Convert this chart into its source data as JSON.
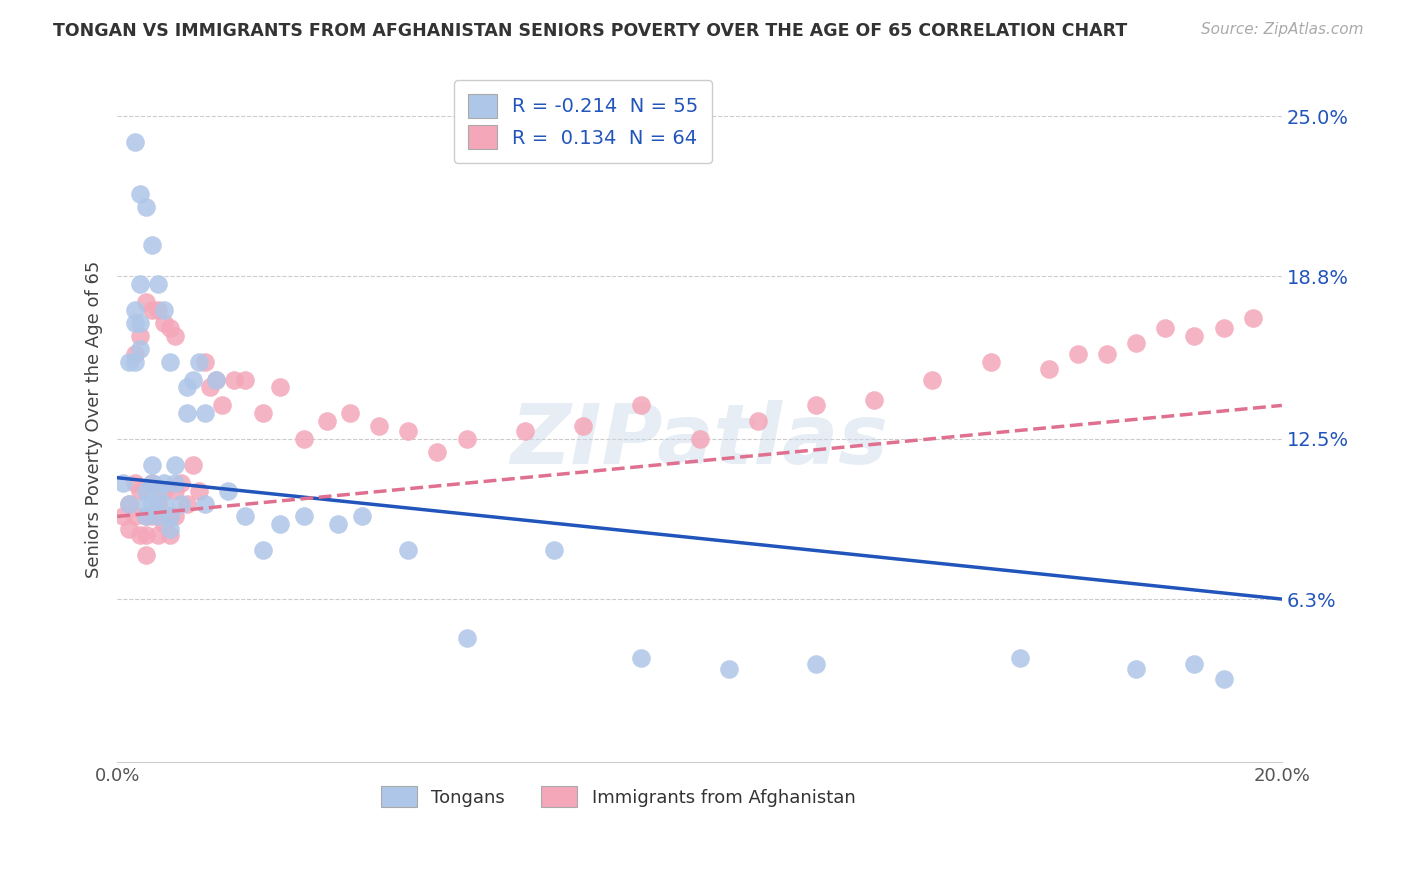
{
  "title": "TONGAN VS IMMIGRANTS FROM AFGHANISTAN SENIORS POVERTY OVER THE AGE OF 65 CORRELATION CHART",
  "source": "Source: ZipAtlas.com",
  "ylabel": "Seniors Poverty Over the Age of 65",
  "xlim": [
    0.0,
    0.2
  ],
  "ylim": [
    0.0,
    0.265
  ],
  "yticks_right": [
    0.063,
    0.125,
    0.188,
    0.25
  ],
  "yticklabels_right": [
    "6.3%",
    "12.5%",
    "18.8%",
    "25.0%"
  ],
  "grid_color": "#cccccc",
  "background_color": "#ffffff",
  "tongan_color": "#aec6e8",
  "afghanistan_color": "#f4a7b9",
  "tongan_line_color": "#2255bb",
  "afghanistan_line_color": "#e07090",
  "legend_R1": "-0.214",
  "legend_N1": "55",
  "legend_R2": "0.134",
  "legend_N2": "64",
  "tongan_x": [
    0.001,
    0.002,
    0.002,
    0.003,
    0.003,
    0.003,
    0.004,
    0.004,
    0.004,
    0.005,
    0.005,
    0.005,
    0.006,
    0.006,
    0.006,
    0.007,
    0.007,
    0.008,
    0.008,
    0.009,
    0.009,
    0.01,
    0.011,
    0.012,
    0.013,
    0.014,
    0.015,
    0.017,
    0.019,
    0.022,
    0.025,
    0.028,
    0.032,
    0.038,
    0.042,
    0.05,
    0.06,
    0.075,
    0.09,
    0.105,
    0.12,
    0.155,
    0.175,
    0.185,
    0.19,
    0.003,
    0.004,
    0.005,
    0.006,
    0.007,
    0.008,
    0.009,
    0.01,
    0.012,
    0.015
  ],
  "tongan_y": [
    0.108,
    0.155,
    0.1,
    0.175,
    0.17,
    0.155,
    0.185,
    0.17,
    0.16,
    0.105,
    0.1,
    0.095,
    0.115,
    0.108,
    0.1,
    0.105,
    0.095,
    0.108,
    0.1,
    0.095,
    0.09,
    0.108,
    0.1,
    0.135,
    0.148,
    0.155,
    0.135,
    0.148,
    0.105,
    0.095,
    0.082,
    0.092,
    0.095,
    0.092,
    0.095,
    0.082,
    0.048,
    0.082,
    0.04,
    0.036,
    0.038,
    0.04,
    0.036,
    0.038,
    0.032,
    0.24,
    0.22,
    0.215,
    0.2,
    0.185,
    0.175,
    0.155,
    0.115,
    0.145,
    0.1
  ],
  "afghanistan_x": [
    0.001,
    0.002,
    0.002,
    0.003,
    0.003,
    0.004,
    0.004,
    0.005,
    0.005,
    0.005,
    0.006,
    0.006,
    0.007,
    0.007,
    0.008,
    0.008,
    0.009,
    0.009,
    0.01,
    0.01,
    0.011,
    0.012,
    0.013,
    0.014,
    0.015,
    0.016,
    0.017,
    0.018,
    0.02,
    0.022,
    0.025,
    0.028,
    0.032,
    0.036,
    0.04,
    0.045,
    0.05,
    0.055,
    0.06,
    0.07,
    0.08,
    0.09,
    0.1,
    0.11,
    0.12,
    0.13,
    0.14,
    0.15,
    0.16,
    0.165,
    0.17,
    0.175,
    0.18,
    0.185,
    0.19,
    0.195,
    0.003,
    0.004,
    0.005,
    0.006,
    0.007,
    0.008,
    0.009,
    0.01
  ],
  "afghanistan_y": [
    0.095,
    0.1,
    0.09,
    0.108,
    0.095,
    0.088,
    0.105,
    0.095,
    0.088,
    0.08,
    0.095,
    0.108,
    0.088,
    0.1,
    0.092,
    0.105,
    0.095,
    0.088,
    0.095,
    0.105,
    0.108,
    0.1,
    0.115,
    0.105,
    0.155,
    0.145,
    0.148,
    0.138,
    0.148,
    0.148,
    0.135,
    0.145,
    0.125,
    0.132,
    0.135,
    0.13,
    0.128,
    0.12,
    0.125,
    0.128,
    0.13,
    0.138,
    0.125,
    0.132,
    0.138,
    0.14,
    0.148,
    0.155,
    0.152,
    0.158,
    0.158,
    0.162,
    0.168,
    0.165,
    0.168,
    0.172,
    0.158,
    0.165,
    0.178,
    0.175,
    0.175,
    0.17,
    0.168,
    0.165
  ]
}
